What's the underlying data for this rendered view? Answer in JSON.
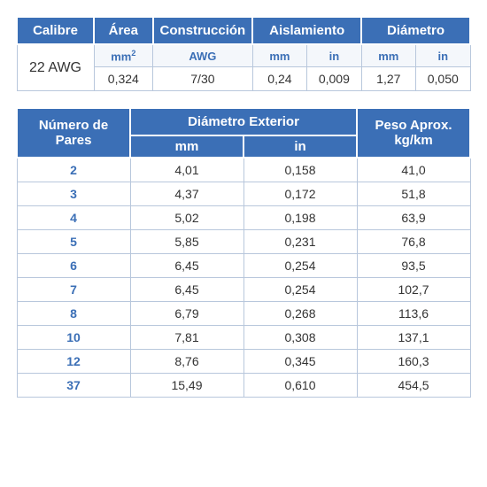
{
  "table1": {
    "headers": {
      "calibre": "Calibre",
      "area": "Área",
      "construccion": "Construcción",
      "aislamiento": "Aislamiento",
      "diametro": "Diámetro"
    },
    "units": {
      "area_mm2": "mm²",
      "awg": "AWG",
      "mm": "mm",
      "in": "in"
    },
    "row": {
      "calibre": "22 AWG",
      "area": "0,324",
      "construccion": "7/30",
      "ais_mm": "0,24",
      "ais_in": "0,009",
      "dia_mm": "1,27",
      "dia_in": "0,050"
    }
  },
  "table2": {
    "headers": {
      "pares": "Número de Pares",
      "diam_ext": "Diámetro Exterior",
      "peso": "Peso Aprox. kg/km",
      "mm": "mm",
      "in": "in"
    },
    "rows": [
      {
        "pares": "2",
        "mm": "4,01",
        "in": "0,158",
        "peso": "41,0"
      },
      {
        "pares": "3",
        "mm": "4,37",
        "in": "0,172",
        "peso": "51,8"
      },
      {
        "pares": "4",
        "mm": "5,02",
        "in": "0,198",
        "peso": "63,9"
      },
      {
        "pares": "5",
        "mm": "5,85",
        "in": "0,231",
        "peso": "76,8"
      },
      {
        "pares": "6",
        "mm": "6,45",
        "in": "0,254",
        "peso": "93,5"
      },
      {
        "pares": "7",
        "mm": "6,45",
        "in": "0,254",
        "peso": "102,7"
      },
      {
        "pares": "8",
        "mm": "6,79",
        "in": "0,268",
        "peso": "113,6"
      },
      {
        "pares": "10",
        "mm": "7,81",
        "in": "0,308",
        "peso": "137,1"
      },
      {
        "pares": "12",
        "mm": "8,76",
        "in": "0,345",
        "peso": "160,3"
      },
      {
        "pares": "37",
        "mm": "15,49",
        "in": "0,610",
        "peso": "454,5"
      }
    ]
  },
  "styles": {
    "header_bg": "#3b6fb6",
    "header_fg": "#ffffff",
    "accent_text": "#3b6fb6",
    "border_color": "#b8c7dc",
    "body_text": "#333333",
    "font_family": "Arial",
    "header_fontsize_pt": 11,
    "cell_fontsize_pt": 10
  }
}
